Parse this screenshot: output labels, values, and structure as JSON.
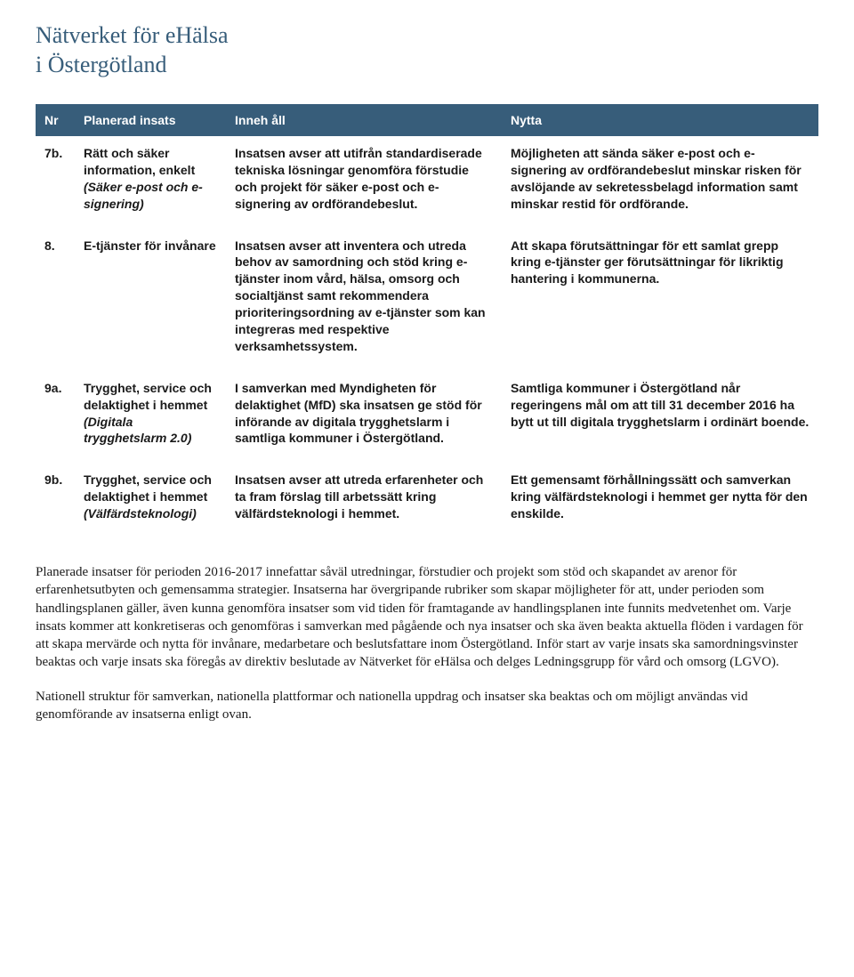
{
  "title_line1": "Nätverket för eHälsa",
  "title_line2": "i Östergötland",
  "table": {
    "headers": {
      "nr": "Nr",
      "insats": "Planerad insats",
      "inne": "Inneh åll",
      "nytta": "Nytta"
    },
    "rows": [
      {
        "nr": "7b.",
        "insats": "Rätt och säker information, enkelt ",
        "insats_em": "(Säker e-post och e-signering)",
        "inne": "Insatsen avser att utifrån standardiserade tekniska lösningar genomföra förstudie och projekt för säker e-post och e-signering av ordförandebeslut.",
        "nytta": "Möjligheten att sända säker e-post och e-signering av ordförandebeslut minskar risken för avslöjande av sekretessbelagd information samt minskar restid för ordförande."
      },
      {
        "nr": "8.",
        "insats": "E-tjänster för invånare",
        "insats_em": "",
        "inne": "Insatsen avser att inventera och utreda behov av samordning och stöd kring e-tjänster inom vård, hälsa, omsorg och socialtjänst samt rekommendera prioriteringsordning av e-tjänster som kan integreras med respektive verksamhetssystem.",
        "nytta": "Att skapa förutsättningar för ett samlat grepp kring e-tjänster ger förutsättningar för likriktig hantering i kommunerna."
      },
      {
        "nr": "9a.",
        "insats": "Trygghet, service och delaktighet i hemmet ",
        "insats_em": "(Digitala trygghetslarm 2.0)",
        "inne": "I samverkan med Myndigheten för delaktighet (MfD) ska insatsen ge stöd för införande av digitala trygghetslarm i samtliga kommuner i Östergötland.",
        "nytta": "Samtliga kommuner i Östergötland når regeringens mål om att till 31 december 2016 ha bytt ut till digitala trygghetslarm i ordinärt boende."
      },
      {
        "nr": "9b.",
        "insats": "Trygghet, service och delaktighet i hemmet ",
        "insats_em": "(Välfärds­teknologi)",
        "inne": "Insatsen avser att utreda erfarenheter och ta fram förslag till arbetssätt kring välfärdsteknologi i hemmet.",
        "nytta": "Ett gemensamt förhållningssätt och samverkan kring välfärdsteknologi i hemmet ger nytta för den enskilde."
      }
    ]
  },
  "paragraphs": [
    "Planerade insatser för perioden 2016-2017 innefattar såväl utredningar, förstudier och projekt som stöd och skapandet av arenor för erfarenhetsutbyten och gemensamma strategier. Insatserna har övergripande rubriker som skapar möjligheter för att, under perioden som handlingsplanen gäller, även kunna genomföra insatser som vid tiden för framtagande av handlingsplanen inte funnits medvetenhet om. Varje insats kommer att konkretiseras och genomföras i samverkan med pågående och nya insatser och ska även beakta aktuella flöden i vardagen för att skapa mervärde och nytta för invånare, medarbetare och beslutsfattare inom Östergötland. Inför start av varje insats ska samordningsvinster beaktas och varje insats ska föregås av direktiv beslutade av Nätverket för eHälsa och delges Ledningsgrupp för vård och omsorg (LGVO).",
    "Nationell struktur för samverkan, nationella plattformar och nationella uppdrag och insatser ska beaktas och om möjligt användas vid genomförande av insatserna enligt ovan."
  ]
}
